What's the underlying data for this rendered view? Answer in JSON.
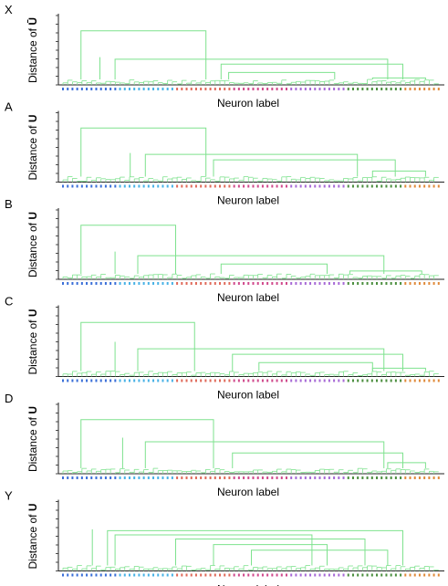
{
  "figure": {
    "xlabel": "Neuron label",
    "ylabel_prefix": "Distance of ",
    "panels": [
      {
        "id": "X",
        "letter": "X",
        "y_symbol": "Ū"
      },
      {
        "id": "A",
        "letter": "A",
        "y_symbol": "U"
      },
      {
        "id": "B",
        "letter": "B",
        "y_symbol": "U"
      },
      {
        "id": "C",
        "letter": "C",
        "y_symbol": "U"
      },
      {
        "id": "D",
        "letter": "D",
        "y_symbol": "U"
      },
      {
        "id": "Y",
        "letter": "Y",
        "y_symbol": "U"
      }
    ]
  },
  "colors": {
    "link": "#7ee28e",
    "axis": "#222222",
    "text": "#000000",
    "leaf_label_palette": [
      "#3a6fd8",
      "#49b2e6",
      "#e06a5a",
      "#d04a8c",
      "#a76ad6",
      "#4b8e3e",
      "#e08a3a"
    ]
  },
  "chart_data": {
    "type": "dendrogram",
    "leaf_count": 80,
    "panels": [
      {
        "panel": "X",
        "merges": [
          [
            0.4,
            0.1,
            0.1
          ],
          [
            0.37,
            0.14,
            0.86
          ],
          [
            0.78,
            0.05,
            0.38
          ],
          [
            0.3,
            0.42,
            0.9
          ],
          [
            0.18,
            0.44,
            0.72
          ],
          [
            0.1,
            0.82,
            0.96
          ]
        ]
      },
      {
        "panel": "A",
        "merges": [
          [
            0.42,
            0.18,
            0.18
          ],
          [
            0.4,
            0.22,
            0.78
          ],
          [
            0.78,
            0.05,
            0.38
          ],
          [
            0.32,
            0.4,
            0.88
          ],
          [
            0.16,
            0.82,
            0.96
          ]
        ]
      },
      {
        "panel": "B",
        "merges": [
          [
            0.4,
            0.14,
            0.14
          ],
          [
            0.34,
            0.2,
            0.85
          ],
          [
            0.78,
            0.05,
            0.3
          ],
          [
            0.22,
            0.42,
            0.7
          ],
          [
            0.12,
            0.76,
            0.95
          ]
        ]
      },
      {
        "panel": "C",
        "merges": [
          [
            0.5,
            0.14,
            0.14
          ],
          [
            0.4,
            0.2,
            0.85
          ],
          [
            0.78,
            0.05,
            0.35
          ],
          [
            0.32,
            0.45,
            0.9
          ],
          [
            0.2,
            0.52,
            0.82
          ],
          [
            0.12,
            0.82,
            0.96
          ]
        ]
      },
      {
        "panel": "D",
        "merges": [
          [
            0.52,
            0.16,
            0.16
          ],
          [
            0.46,
            0.22,
            0.85
          ],
          [
            0.78,
            0.05,
            0.4
          ],
          [
            0.3,
            0.45,
            0.9
          ],
          [
            0.16,
            0.86,
            0.96
          ]
        ]
      },
      {
        "panel": "Y",
        "merges": [
          [
            0.6,
            0.08,
            0.08
          ],
          [
            0.58,
            0.12,
            0.9
          ],
          [
            0.52,
            0.14,
            0.66
          ],
          [
            0.46,
            0.3,
            0.8
          ],
          [
            0.38,
            0.4,
            0.7
          ],
          [
            0.3,
            0.5,
            0.86
          ]
        ]
      }
    ]
  }
}
